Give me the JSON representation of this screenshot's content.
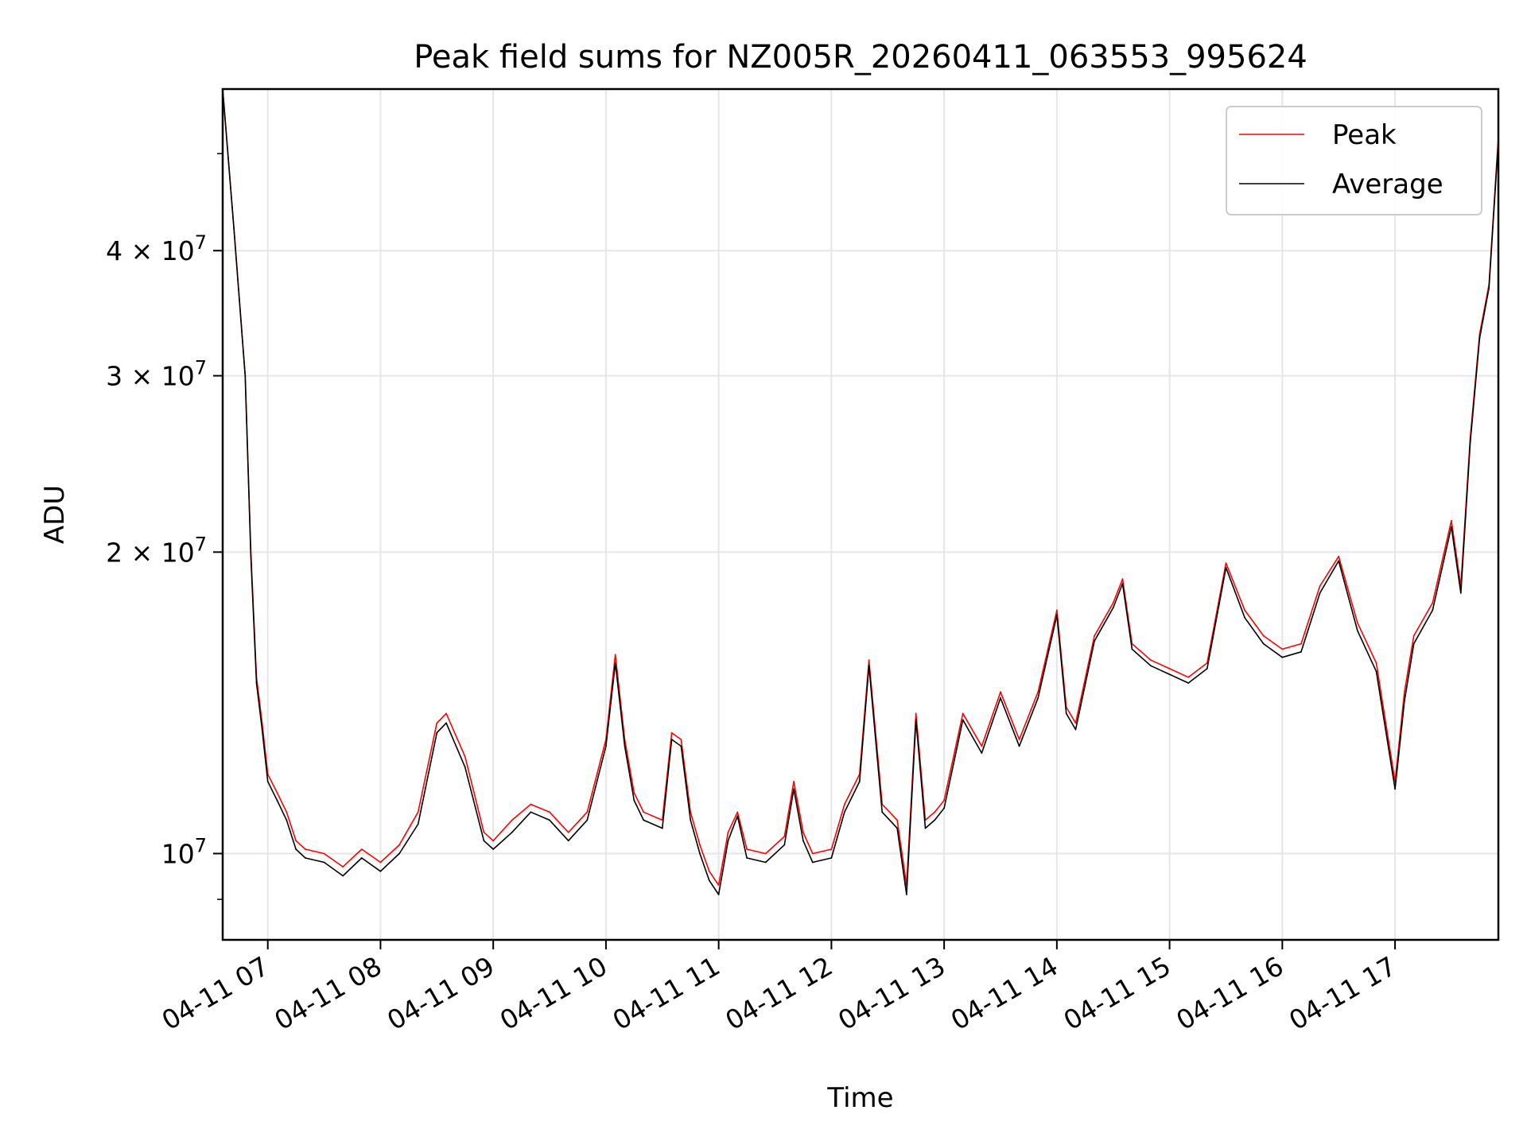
{
  "chart_data": {
    "type": "line",
    "title": "Peak field sums for NZ005R_20260411_063553_995624",
    "xlabel": "Time",
    "ylabel": "ADU",
    "yscale": "log",
    "xlim": [
      "2026-04-11 06:36",
      "2026-04-11 17:55"
    ],
    "ylim": [
      8200000,
      58000000
    ],
    "grid": true,
    "legend_position": "upper right",
    "x_ticks": [
      {
        "value": "2026-04-11 07:00",
        "label": "04-11 07"
      },
      {
        "value": "2026-04-11 08:00",
        "label": "04-11 08"
      },
      {
        "value": "2026-04-11 09:00",
        "label": "04-11 09"
      },
      {
        "value": "2026-04-11 10:00",
        "label": "04-11 10"
      },
      {
        "value": "2026-04-11 11:00",
        "label": "04-11 11"
      },
      {
        "value": "2026-04-11 12:00",
        "label": "04-11 12"
      },
      {
        "value": "2026-04-11 13:00",
        "label": "04-11 13"
      },
      {
        "value": "2026-04-11 14:00",
        "label": "04-11 14"
      },
      {
        "value": "2026-04-11 15:00",
        "label": "04-11 15"
      },
      {
        "value": "2026-04-11 16:00",
        "label": "04-11 16"
      },
      {
        "value": "2026-04-11 17:00",
        "label": "04-11 17"
      }
    ],
    "y_ticks": [
      {
        "value": 10000000,
        "base": "10",
        "exp": "7",
        "mantissa": ""
      },
      {
        "value": 20000000,
        "base": "10",
        "exp": "7",
        "mantissa": "2"
      },
      {
        "value": 30000000,
        "base": "10",
        "exp": "7",
        "mantissa": "3"
      },
      {
        "value": 40000000,
        "base": "10",
        "exp": "7",
        "mantissa": "4"
      }
    ],
    "y_minor_ticks": [
      9000000,
      50000000
    ],
    "series": [
      {
        "name": "Peak",
        "color": "#ff0000",
        "x": [
          "2026-04-11 06:36",
          "2026-04-11 06:42",
          "2026-04-11 06:48",
          "2026-04-11 06:51",
          "2026-04-11 06:54",
          "2026-04-11 06:57",
          "2026-04-11 07:00",
          "2026-04-11 07:05",
          "2026-04-11 07:10",
          "2026-04-11 07:15",
          "2026-04-11 07:20",
          "2026-04-11 07:30",
          "2026-04-11 07:40",
          "2026-04-11 07:50",
          "2026-04-11 08:00",
          "2026-04-11 08:10",
          "2026-04-11 08:20",
          "2026-04-11 08:30",
          "2026-04-11 08:35",
          "2026-04-11 08:45",
          "2026-04-11 08:55",
          "2026-04-11 09:00",
          "2026-04-11 09:10",
          "2026-04-11 09:20",
          "2026-04-11 09:30",
          "2026-04-11 09:40",
          "2026-04-11 09:50",
          "2026-04-11 10:00",
          "2026-04-11 10:05",
          "2026-04-11 10:10",
          "2026-04-11 10:15",
          "2026-04-11 10:20",
          "2026-04-11 10:30",
          "2026-04-11 10:35",
          "2026-04-11 10:40",
          "2026-04-11 10:45",
          "2026-04-11 10:50",
          "2026-04-11 10:55",
          "2026-04-11 11:00",
          "2026-04-11 11:05",
          "2026-04-11 11:10",
          "2026-04-11 11:15",
          "2026-04-11 11:25",
          "2026-04-11 11:35",
          "2026-04-11 11:40",
          "2026-04-11 11:45",
          "2026-04-11 11:50",
          "2026-04-11 12:00",
          "2026-04-11 12:07",
          "2026-04-11 12:15",
          "2026-04-11 12:20",
          "2026-04-11 12:27",
          "2026-04-11 12:35",
          "2026-04-11 12:40",
          "2026-04-11 12:45",
          "2026-04-11 12:50",
          "2026-04-11 12:55",
          "2026-04-11 13:00",
          "2026-04-11 13:10",
          "2026-04-11 13:20",
          "2026-04-11 13:30",
          "2026-04-11 13:40",
          "2026-04-11 13:50",
          "2026-04-11 14:00",
          "2026-04-11 14:05",
          "2026-04-11 14:10",
          "2026-04-11 14:20",
          "2026-04-11 14:30",
          "2026-04-11 14:35",
          "2026-04-11 14:40",
          "2026-04-11 14:50",
          "2026-04-11 15:00",
          "2026-04-11 15:10",
          "2026-04-11 15:20",
          "2026-04-11 15:30",
          "2026-04-11 15:40",
          "2026-04-11 15:50",
          "2026-04-11 16:00",
          "2026-04-11 16:10",
          "2026-04-11 16:20",
          "2026-04-11 16:30",
          "2026-04-11 16:40",
          "2026-04-11 16:50",
          "2026-04-11 17:00",
          "2026-04-11 17:05",
          "2026-04-11 17:10",
          "2026-04-11 17:20",
          "2026-04-11 17:30",
          "2026-04-11 17:35",
          "2026-04-11 17:40",
          "2026-04-11 17:45",
          "2026-04-11 17:50",
          "2026-04-11 17:55"
        ],
        "values": [
          58000000,
          42000000,
          30000000,
          20000000,
          15000000,
          13500000,
          12000000,
          11500000,
          11000000,
          10300000,
          10100000,
          10000000,
          9700000,
          10100000,
          9800000,
          10200000,
          11000000,
          13500000,
          13800000,
          12500000,
          10500000,
          10300000,
          10800000,
          11200000,
          11000000,
          10500000,
          11000000,
          13000000,
          15800000,
          13000000,
          11500000,
          11000000,
          10800000,
          13200000,
          13000000,
          11000000,
          10200000,
          9600000,
          9300000,
          10500000,
          11000000,
          10100000,
          10000000,
          10400000,
          11800000,
          10500000,
          10000000,
          10100000,
          11200000,
          12000000,
          15600000,
          11200000,
          10800000,
          9300000,
          13800000,
          10800000,
          11000000,
          11300000,
          13800000,
          12800000,
          14500000,
          13000000,
          14500000,
          17500000,
          14000000,
          13500000,
          16500000,
          17800000,
          18800000,
          16200000,
          15600000,
          15300000,
          15000000,
          15500000,
          19500000,
          17500000,
          16500000,
          16000000,
          16200000,
          18500000,
          19800000,
          17000000,
          15500000,
          11800000,
          14500000,
          16500000,
          17800000,
          21500000,
          18500000,
          26000000,
          33000000,
          37000000,
          52000000
        ]
      },
      {
        "name": "Average",
        "color": "#000000",
        "x": [
          "2026-04-11 06:36",
          "2026-04-11 06:42",
          "2026-04-11 06:48",
          "2026-04-11 06:51",
          "2026-04-11 06:54",
          "2026-04-11 06:57",
          "2026-04-11 07:00",
          "2026-04-11 07:05",
          "2026-04-11 07:10",
          "2026-04-11 07:15",
          "2026-04-11 07:20",
          "2026-04-11 07:30",
          "2026-04-11 07:40",
          "2026-04-11 07:50",
          "2026-04-11 08:00",
          "2026-04-11 08:10",
          "2026-04-11 08:20",
          "2026-04-11 08:30",
          "2026-04-11 08:35",
          "2026-04-11 08:45",
          "2026-04-11 08:55",
          "2026-04-11 09:00",
          "2026-04-11 09:10",
          "2026-04-11 09:20",
          "2026-04-11 09:30",
          "2026-04-11 09:40",
          "2026-04-11 09:50",
          "2026-04-11 10:00",
          "2026-04-11 10:05",
          "2026-04-11 10:10",
          "2026-04-11 10:15",
          "2026-04-11 10:20",
          "2026-04-11 10:30",
          "2026-04-11 10:35",
          "2026-04-11 10:40",
          "2026-04-11 10:45",
          "2026-04-11 10:50",
          "2026-04-11 10:55",
          "2026-04-11 11:00",
          "2026-04-11 11:05",
          "2026-04-11 11:10",
          "2026-04-11 11:15",
          "2026-04-11 11:25",
          "2026-04-11 11:35",
          "2026-04-11 11:40",
          "2026-04-11 11:45",
          "2026-04-11 11:50",
          "2026-04-11 12:00",
          "2026-04-11 12:07",
          "2026-04-11 12:15",
          "2026-04-11 12:20",
          "2026-04-11 12:27",
          "2026-04-11 12:35",
          "2026-04-11 12:40",
          "2026-04-11 12:45",
          "2026-04-11 12:50",
          "2026-04-11 12:55",
          "2026-04-11 13:00",
          "2026-04-11 13:10",
          "2026-04-11 13:20",
          "2026-04-11 13:30",
          "2026-04-11 13:40",
          "2026-04-11 13:50",
          "2026-04-11 14:00",
          "2026-04-11 14:05",
          "2026-04-11 14:10",
          "2026-04-11 14:20",
          "2026-04-11 14:30",
          "2026-04-11 14:35",
          "2026-04-11 14:40",
          "2026-04-11 14:50",
          "2026-04-11 15:00",
          "2026-04-11 15:10",
          "2026-04-11 15:20",
          "2026-04-11 15:30",
          "2026-04-11 15:40",
          "2026-04-11 15:50",
          "2026-04-11 16:00",
          "2026-04-11 16:10",
          "2026-04-11 16:20",
          "2026-04-11 16:30",
          "2026-04-11 16:40",
          "2026-04-11 16:50",
          "2026-04-11 17:00",
          "2026-04-11 17:05",
          "2026-04-11 17:10",
          "2026-04-11 17:20",
          "2026-04-11 17:30",
          "2026-04-11 17:35",
          "2026-04-11 17:40",
          "2026-04-11 17:45",
          "2026-04-11 17:50",
          "2026-04-11 17:55"
        ],
        "values": [
          58000000,
          42000000,
          30000000,
          19800000,
          14800000,
          13300000,
          11800000,
          11300000,
          10800000,
          10100000,
          9900000,
          9800000,
          9500000,
          9900000,
          9600000,
          10000000,
          10700000,
          13200000,
          13500000,
          12200000,
          10300000,
          10100000,
          10500000,
          11000000,
          10800000,
          10300000,
          10800000,
          12800000,
          15500000,
          12800000,
          11300000,
          10800000,
          10600000,
          13000000,
          12800000,
          10800000,
          10000000,
          9400000,
          9100000,
          10300000,
          10900000,
          9900000,
          9800000,
          10200000,
          11600000,
          10300000,
          9800000,
          9900000,
          11000000,
          11800000,
          15400000,
          11000000,
          10600000,
          9100000,
          13600000,
          10600000,
          10800000,
          11100000,
          13600000,
          12600000,
          14300000,
          12800000,
          14300000,
          17300000,
          13800000,
          13300000,
          16300000,
          17600000,
          18600000,
          16000000,
          15400000,
          15100000,
          14800000,
          15300000,
          19300000,
          17200000,
          16200000,
          15700000,
          15900000,
          18200000,
          19600000,
          16700000,
          15200000,
          11600000,
          14200000,
          16200000,
          17500000,
          21200000,
          18200000,
          25700000,
          32700000,
          36700000,
          51500000
        ]
      }
    ]
  }
}
